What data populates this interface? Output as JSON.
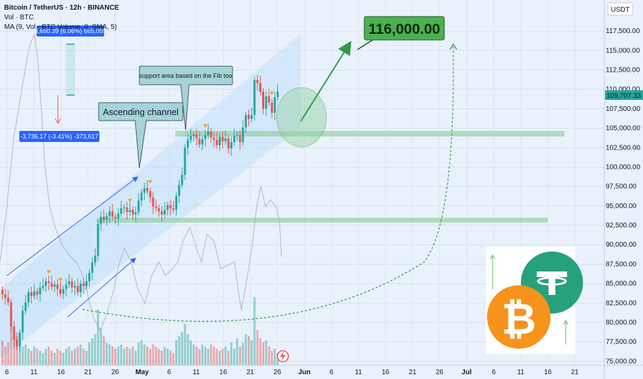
{
  "header": {
    "title": "Bitcoin / TetherUS · 12h · BINANCE",
    "vol": "Vol · BTC",
    "ma": "MA (9, Vol · BTC Volume, 0, SMA, 5)"
  },
  "colors": {
    "up": "#26a69a",
    "down": "#ef5350",
    "accent": "#4caf50",
    "channel": "#2962ff",
    "measure": "#2962ff"
  },
  "chart_data": {
    "type": "candlestick",
    "symbol": "BTCUSDT",
    "timeframe": "12h",
    "ylim": [
      74500,
      121500
    ],
    "yticks": [
      75000,
      77500,
      80000,
      82500,
      85000,
      87500,
      90000,
      92500,
      95000,
      97500,
      100000,
      102500,
      105000,
      107500,
      110000,
      112500,
      115000,
      117500
    ],
    "ytick_labels": [
      "75,000.00",
      "77,500.00",
      "80,000.00",
      "82,500.00",
      "85,000.00",
      "87,500.00",
      "90,000.00",
      "92,500.00",
      "95,000.00",
      "97,500.00",
      "100,000.00",
      "102,500.00",
      "105,000.00",
      "107,500.00",
      "110,000.00",
      "112,500.00",
      "115,000.00",
      "117,500.00"
    ],
    "xticks": [
      {
        "label": "6",
        "bold": false
      },
      {
        "label": "11",
        "bold": false
      },
      {
        "label": "16",
        "bold": false
      },
      {
        "label": "21",
        "bold": false
      },
      {
        "label": "26",
        "bold": false
      },
      {
        "label": "May",
        "bold": true
      },
      {
        "label": "6",
        "bold": false
      },
      {
        "label": "11",
        "bold": false
      },
      {
        "label": "16",
        "bold": false
      },
      {
        "label": "21",
        "bold": false
      },
      {
        "label": "26",
        "bold": false
      },
      {
        "label": "Jun",
        "bold": true
      },
      {
        "label": "6",
        "bold": false
      },
      {
        "label": "11",
        "bold": false
      },
      {
        "label": "16",
        "bold": false
      },
      {
        "label": "21",
        "bold": false
      },
      {
        "label": "26",
        "bold": false
      },
      {
        "label": "Jul",
        "bold": true
      },
      {
        "label": "6",
        "bold": false
      },
      {
        "label": "11",
        "bold": false
      },
      {
        "label": "16",
        "bold": false
      },
      {
        "label": "21",
        "bold": false
      }
    ],
    "closes": [
      83600,
      83200,
      82600,
      79500,
      77800,
      76900,
      78700,
      81500,
      82600,
      83900,
      83400,
      84000,
      83600,
      84500,
      84700,
      85300,
      85100,
      84600,
      84900,
      84300,
      83700,
      84300,
      84900,
      85300,
      84500,
      84700,
      83900,
      85000,
      84700,
      85300,
      86400,
      87700,
      88600,
      92700,
      93600,
      93200,
      93700,
      94300,
      93600,
      93400,
      94000,
      94700,
      94800,
      94200,
      94500,
      93900,
      94200,
      95700,
      96700,
      97300,
      96900,
      96100,
      94900,
      94700,
      94300,
      93900,
      94500,
      95100,
      94700,
      94500,
      96300,
      97700,
      99000,
      102500,
      103500,
      104000,
      104200,
      103700,
      102900,
      103600,
      104100,
      104600,
      103800,
      103500,
      102800,
      103900,
      103300,
      103700,
      102400,
      103200,
      104000,
      104100,
      103200,
      105100,
      106700,
      106200,
      106700,
      111200,
      110800,
      109700,
      107500,
      109100,
      108300,
      107000,
      109000,
      109700
    ],
    "current_price": 109707.33,
    "current_price_label": "109,707.33",
    "volumes": [
      1.2,
      0.9,
      1.1,
      2.5,
      1.8,
      1.4,
      1.2,
      0.9,
      1.0,
      0.8,
      0.7,
      0.9,
      0.8,
      0.7,
      0.6,
      0.8,
      0.9,
      0.7,
      0.6,
      0.8,
      0.7,
      0.6,
      0.8,
      0.9,
      0.7,
      0.8,
      0.9,
      1.0,
      0.8,
      0.7,
      1.1,
      1.3,
      1.5,
      2.7,
      1.8,
      1.4,
      1.1,
      1.0,
      0.9,
      0.8,
      0.9,
      1.0,
      0.8,
      0.9,
      0.8,
      0.9,
      0.7,
      1.1,
      1.2,
      1.0,
      0.9,
      0.8,
      1.0,
      0.9,
      0.8,
      0.7,
      0.9,
      0.8,
      0.7,
      0.6,
      1.2,
      1.4,
      1.6,
      2.0,
      1.5,
      1.2,
      1.0,
      0.9,
      0.8,
      1.0,
      0.9,
      0.8,
      1.0,
      0.9,
      0.8,
      0.7,
      0.8,
      0.9,
      0.7,
      1.1,
      0.8,
      1.3,
      0.9,
      1.1,
      1.5,
      1.4,
      1.2,
      3.3,
      1.7,
      1.3,
      1.1,
      1.2,
      0.9,
      0.7,
      0.8,
      0.6
    ],
    "fib_support": [
      93200,
      104700
    ],
    "target_label": "116,000.00",
    "annotations": {
      "channel": "Ascending channel",
      "support": "support area based on the Fib too",
      "measure_up": "6,650.39 (6.06%) 665,059",
      "measure_down": "-3,736.17 (-3.41%) -373,617"
    }
  },
  "price_scale_currency": "USDT"
}
